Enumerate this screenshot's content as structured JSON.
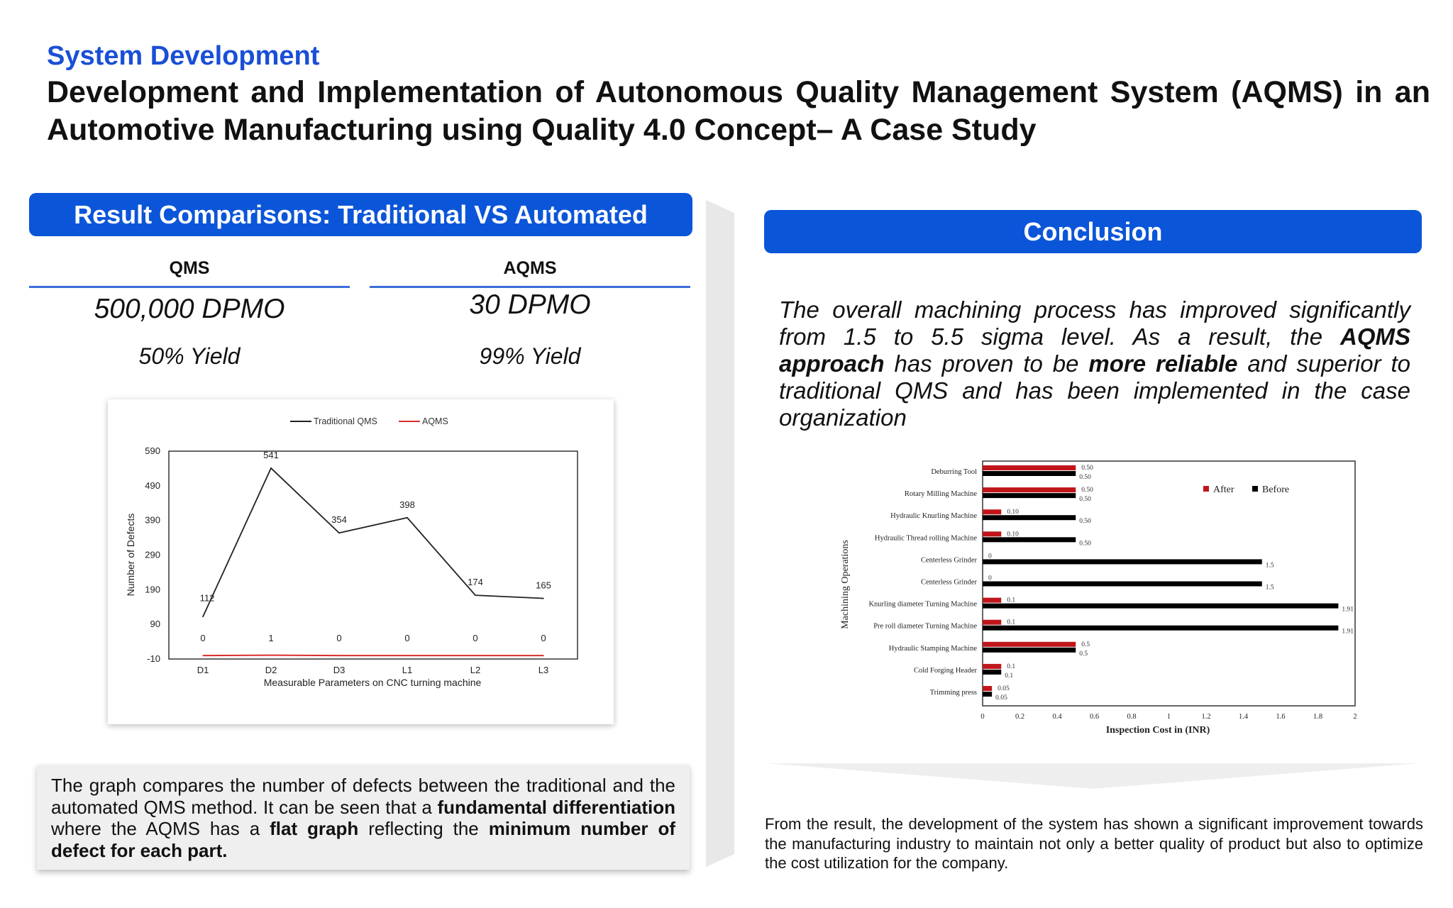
{
  "header": {
    "kicker": "System Development",
    "title": "Development and Implementation of Autonomous Quality Management System (AQMS) in an Automotive Manufacturing using Quality 4.0 Concept– A Case Study"
  },
  "left_panel": {
    "heading": "Result Comparisons: Traditional VS Automated",
    "qms": {
      "label": "QMS",
      "dpmo": "500,000 DPMO",
      "yield": "50% Yield"
    },
    "aqms": {
      "label": "AQMS",
      "dpmo": "30 DPMO",
      "yield": "99% Yield"
    },
    "note": {
      "p1": "The graph compares the number of defects between the traditional and the automated QMS method. It can be seen that a ",
      "b1": "fundamental differentiation",
      "p2": " where the AQMS has a ",
      "b2": "flat graph",
      "p3": " reflecting the ",
      "b3": "minimum number of defect for each part."
    }
  },
  "right_panel": {
    "heading": "Conclusion",
    "text": {
      "p1": "The overall machining process has improved significantly from 1.5 to 5.5 sigma level. As a result, the ",
      "b1": "AQMS approach",
      "p2": " has proven to be ",
      "b2": "more reliable",
      "p3": " and superior to traditional QMS and has been implemented in the case organization"
    },
    "bottom_text": "From the result, the development of the system has shown a significant improvement towards the manufacturing industry to maintain not only a better quality of product but also to optimize the cost utilization for the company."
  },
  "colors": {
    "accent": "#0b55d9",
    "kicker": "#1a4fd6",
    "traditional": "#222222",
    "aqms": "#d9302c",
    "after": "#c0161b",
    "before": "#000000"
  },
  "chart_data": [
    {
      "type": "line",
      "xlabel": "Measurable Parameters on CNC turning machine",
      "ylabel": "Number of Defects",
      "categories": [
        "D1",
        "D2",
        "D3",
        "L1",
        "L2",
        "L3"
      ],
      "yticks": [
        590,
        490,
        390,
        290,
        190,
        90,
        -10
      ],
      "ylim": [
        -10,
        590
      ],
      "legend_position": "top-center",
      "series": [
        {
          "name": "Traditional QMS",
          "values": [
            112,
            541,
            354,
            398,
            174,
            165
          ],
          "color": "#222222"
        },
        {
          "name": "AQMS",
          "values": [
            0,
            1,
            0,
            0,
            0,
            0
          ],
          "color": "#d9302c"
        }
      ]
    },
    {
      "type": "bar",
      "orientation": "horizontal",
      "xlabel": "Inspection Cost in (INR)",
      "ylabel": "Machining Operations",
      "xlim": [
        0,
        2
      ],
      "xticks": [
        "0",
        "0.2",
        "0.4",
        "0.6",
        "0.8",
        "1",
        "1.2",
        "1.4",
        "1.6",
        "1.8",
        "2"
      ],
      "legend_position": "top-right",
      "categories": [
        "Deburring Tool",
        "Rotary Milling Machine",
        "Hydraulic Knurling Machine",
        "Hydraulic Thread rolling Machine",
        "Centerless Grinder",
        "Centerless Grinder",
        "Knurling diameter Turning Machine",
        "Pre roll diameter Turning Machine",
        "Hydraulic Stamping Machine",
        "Cold Forging Header",
        "Trimming press"
      ],
      "series": [
        {
          "name": "After",
          "values": [
            0.5,
            0.5,
            0.1,
            0.1,
            0,
            0,
            0.1,
            0.1,
            0.5,
            0.1,
            0.05
          ],
          "labels": [
            "0.50",
            "0.50",
            "0.10",
            "0.10",
            "0",
            "0",
            "0.1",
            "0.1",
            "0.5",
            "0.1",
            "0.05"
          ],
          "color": "#c0161b"
        },
        {
          "name": "Before",
          "values": [
            0.5,
            0.5,
            0.5,
            0.5,
            1.5,
            1.5,
            1.91,
            1.91,
            0.5,
            0.1,
            0.05
          ],
          "labels": [
            "0.50",
            "0.50",
            "0.50",
            "0.50",
            "1.5",
            "1.5",
            "1.91",
            "1.91",
            "0.5",
            "0.1",
            "0.05"
          ],
          "color": "#000000"
        }
      ]
    }
  ]
}
